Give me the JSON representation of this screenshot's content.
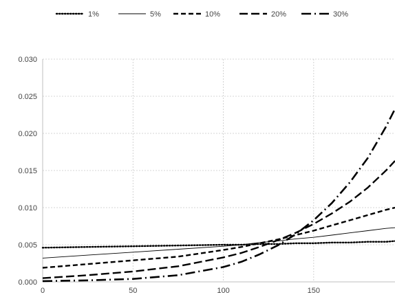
{
  "chart_data": {
    "type": "line",
    "title": "",
    "xlabel": "",
    "ylabel": "",
    "xlim": [
      0,
      195
    ],
    "ylim": [
      0,
      0.03
    ],
    "x_ticks": [
      0,
      50,
      100,
      150
    ],
    "y_ticks": [
      0.0,
      0.005,
      0.01,
      0.015,
      0.02,
      0.025,
      0.03
    ],
    "y_tick_labels": [
      "0.000",
      "0.005",
      "0.010",
      "0.015",
      "0.020",
      "0.025",
      "0.030"
    ],
    "grid": true,
    "legend_position": "top",
    "x": [
      0,
      25,
      50,
      75,
      100,
      110,
      120,
      130,
      140,
      150,
      160,
      170,
      180,
      190,
      195
    ],
    "series": [
      {
        "name": "1%",
        "style": "dotted",
        "values": [
          0.0046,
          0.0047,
          0.0048,
          0.0049,
          0.005,
          0.005,
          0.0051,
          0.0051,
          0.0052,
          0.0052,
          0.0053,
          0.0053,
          0.0054,
          0.0054,
          0.0055
        ]
      },
      {
        "name": "5%",
        "style": "solid",
        "values": [
          0.0032,
          0.0036,
          0.004,
          0.0044,
          0.0048,
          0.005,
          0.0053,
          0.0055,
          0.0058,
          0.006,
          0.0063,
          0.0066,
          0.0069,
          0.0072,
          0.0073
        ]
      },
      {
        "name": "10%",
        "style": "short-dash",
        "values": [
          0.0019,
          0.0024,
          0.0029,
          0.0034,
          0.0043,
          0.0047,
          0.0052,
          0.0057,
          0.0063,
          0.0069,
          0.0076,
          0.0083,
          0.009,
          0.0097,
          0.01
        ]
      },
      {
        "name": "20%",
        "style": "long-dash",
        "values": [
          0.0005,
          0.0009,
          0.0014,
          0.0021,
          0.0033,
          0.0039,
          0.0047,
          0.0056,
          0.0066,
          0.0078,
          0.0092,
          0.0108,
          0.0127,
          0.015,
          0.0163
        ]
      },
      {
        "name": "30%",
        "style": "long-dash-dot",
        "values": [
          0.0001,
          0.0002,
          0.0004,
          0.0009,
          0.002,
          0.0027,
          0.0037,
          0.0049,
          0.0064,
          0.0083,
          0.0106,
          0.0134,
          0.0167,
          0.0209,
          0.0233
        ]
      }
    ]
  }
}
